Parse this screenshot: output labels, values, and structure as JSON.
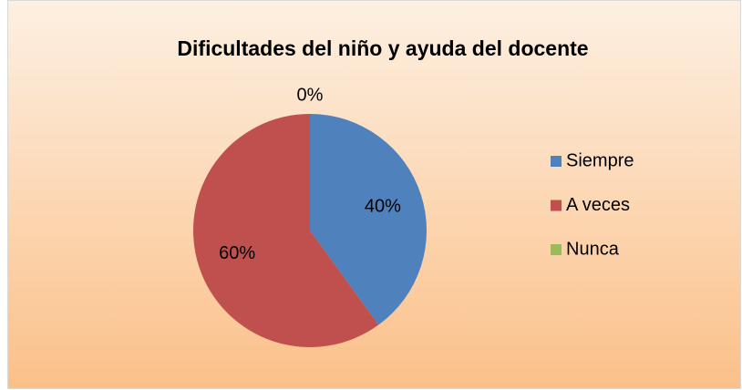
{
  "chart_data": {
    "type": "pie",
    "title": "Dificultades del niño y ayuda del docente",
    "categories": [
      "Siempre",
      "A veces",
      "Nunca"
    ],
    "values": [
      40,
      60,
      0
    ],
    "value_labels": [
      "40%",
      "60%",
      "0%"
    ],
    "colors": [
      "#4f81bd",
      "#c0504d",
      "#9bbb59"
    ],
    "legend": "right"
  }
}
